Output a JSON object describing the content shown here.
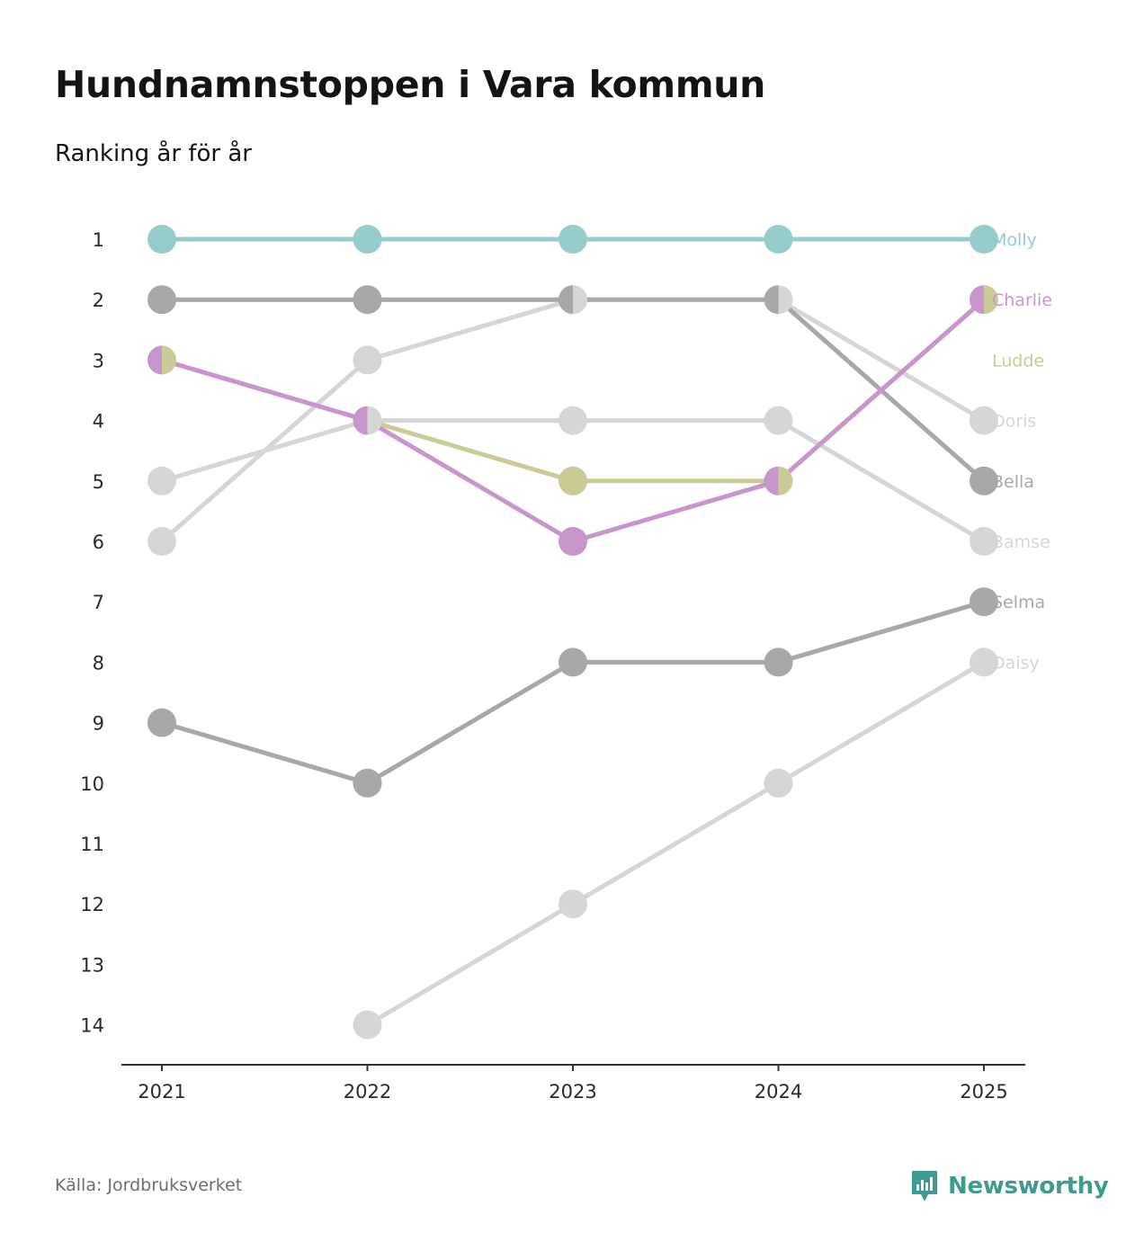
{
  "title": "Hundnamnstoppen i Vara kommun",
  "subtitle": "Ranking år för år",
  "source": "Källa: Jordbruksverket",
  "brand": {
    "name": "Newsworthy",
    "icon": "newsworthy-logo-icon",
    "color": "#3f9a92"
  },
  "chart_data": {
    "type": "line",
    "subtype": "bump",
    "x": [
      "2021",
      "2022",
      "2023",
      "2024",
      "2025"
    ],
    "ylim": [
      1,
      14
    ],
    "y_ticks": [
      "1",
      "2",
      "3",
      "4",
      "5",
      "6",
      "7",
      "8",
      "9",
      "10",
      "11",
      "12",
      "13",
      "14"
    ],
    "y_inverted": true,
    "series": [
      {
        "name": "Daisy",
        "color": "#d6d6d6",
        "ranks": [
          null,
          14,
          12,
          10,
          8
        ]
      },
      {
        "name": "Bamse",
        "color": "#d6d6d6",
        "ranks": [
          5,
          4,
          4,
          4,
          6
        ]
      },
      {
        "name": "Doris",
        "color": "#d6d6d6",
        "ranks": [
          6,
          3,
          2,
          2,
          4
        ]
      },
      {
        "name": "Selma",
        "color": "#a8a8a8",
        "ranks": [
          9,
          10,
          8,
          8,
          7
        ]
      },
      {
        "name": "Bella",
        "color": "#a8a8a8",
        "ranks": [
          2,
          2,
          2,
          2,
          5
        ]
      },
      {
        "name": "Ludde",
        "color": "#cbcb98",
        "ranks": [
          3,
          4,
          5,
          5,
          2
        ]
      },
      {
        "name": "Charlie",
        "color": "#c896cc",
        "ranks": [
          3,
          4,
          6,
          5,
          2
        ]
      },
      {
        "name": "Molly",
        "color": "#96cccc",
        "ranks": [
          1,
          1,
          1,
          1,
          1
        ]
      }
    ]
  }
}
